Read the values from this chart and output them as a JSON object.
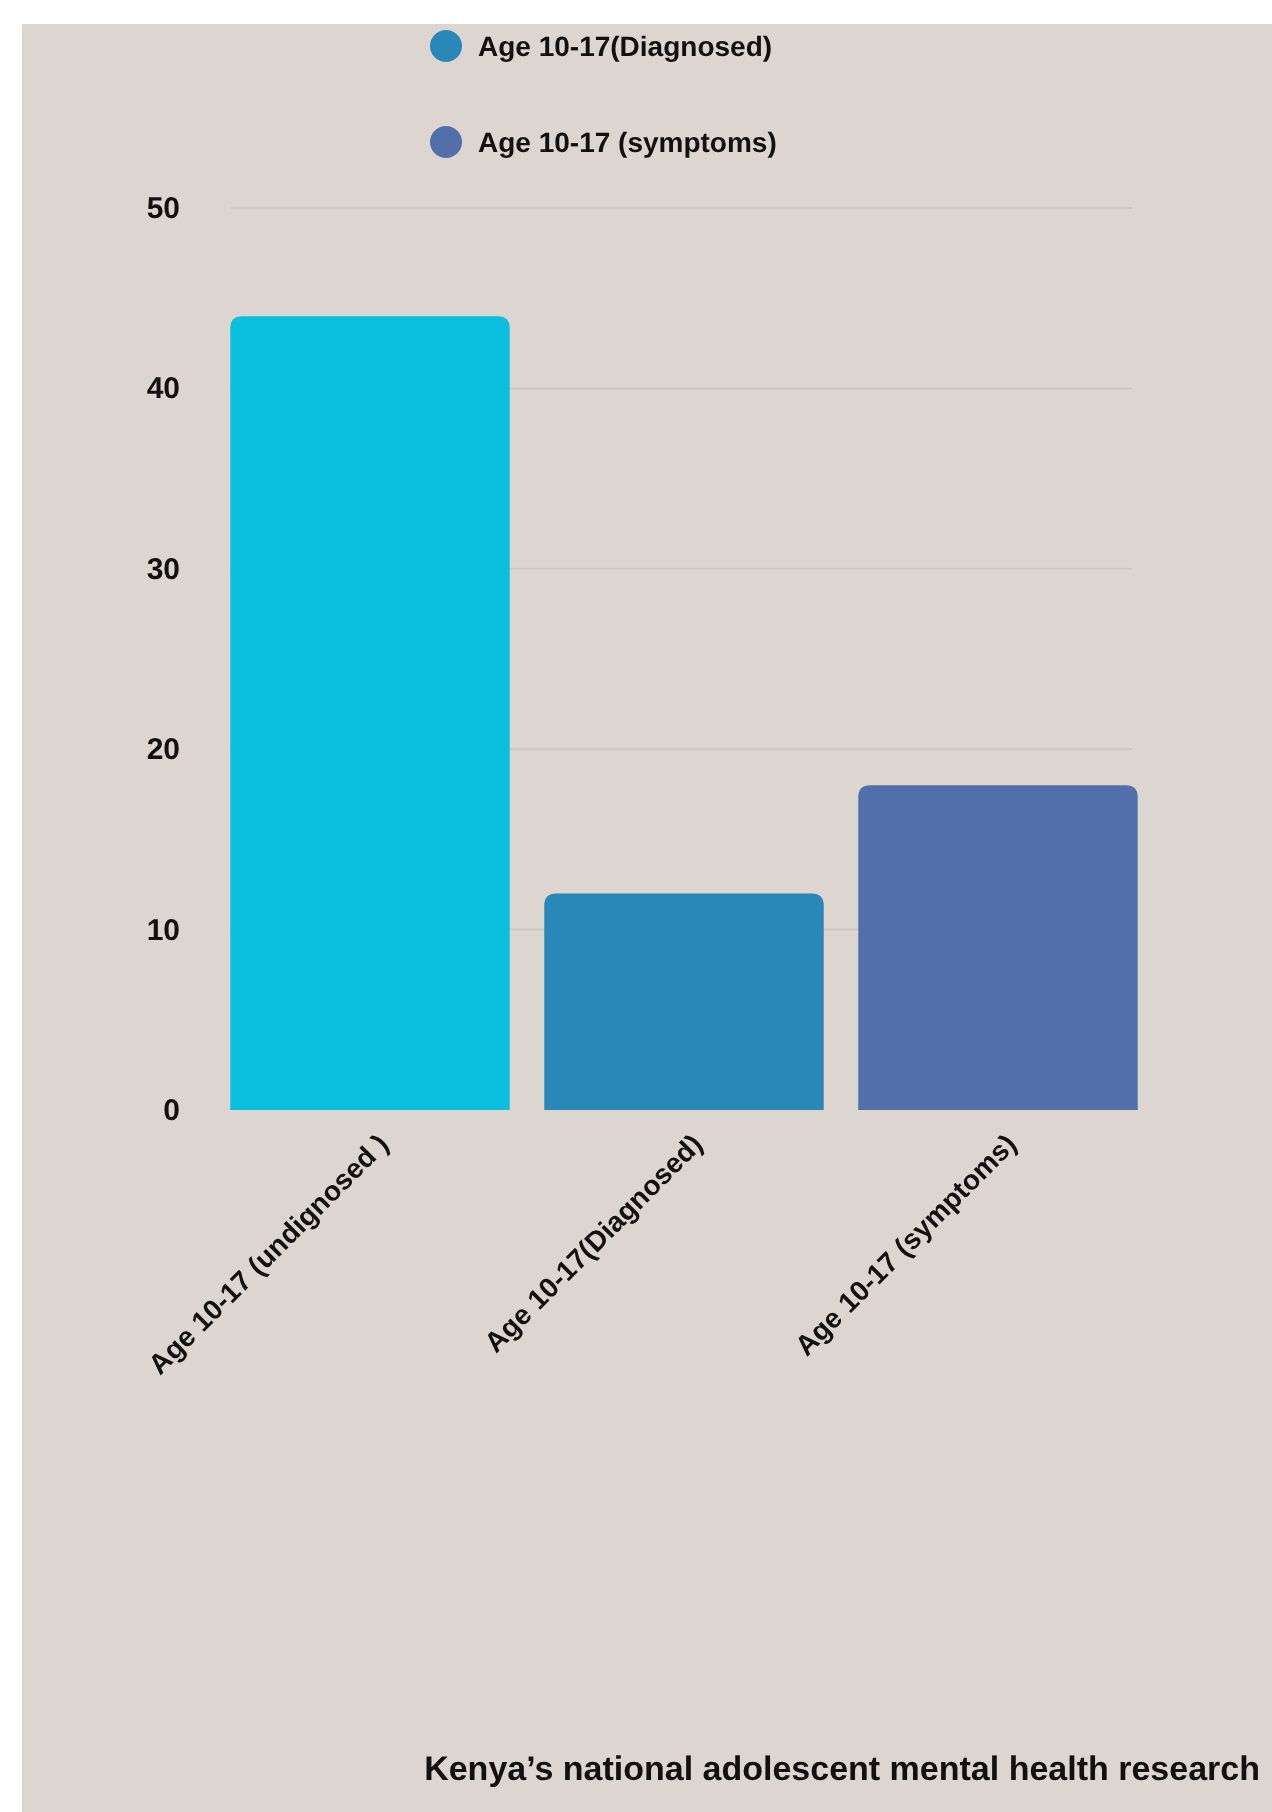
{
  "chart_data": {
    "type": "bar",
    "title": "Kenya’s national adolescent mental health research",
    "categories": [
      "Age 10-17 (undignosed )",
      "Age 10-17(Diagnosed)",
      "Age 10-17 (symptoms)"
    ],
    "series": [
      {
        "color": "#0bbfde",
        "values": [
          44,
          null,
          null
        ]
      },
      {
        "name": "Age 10-17(Diagnosed)",
        "color": "#2a88b8",
        "values": [
          null,
          12,
          null
        ]
      },
      {
        "name": "Age 10-17 (symptoms)",
        "color": "#526eab",
        "values": [
          null,
          null,
          18
        ]
      }
    ],
    "stacked": true,
    "ylim": [
      0,
      50
    ],
    "yticks": [
      0,
      10,
      20,
      30,
      40,
      50
    ],
    "grid": "y",
    "legend": "top"
  }
}
